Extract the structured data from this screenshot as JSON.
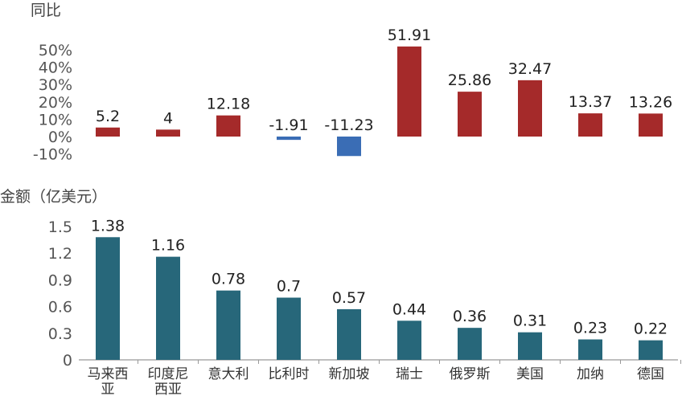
{
  "chart_data": [
    {
      "type": "bar",
      "ylabel": "同比",
      "ytick_labels": [
        "50%",
        "40%",
        "30%",
        "20%",
        "10%",
        "0%",
        "-10%"
      ],
      "ylim": [
        -10,
        50
      ],
      "values": [
        5.2,
        4,
        12.18,
        -1.91,
        -11.23,
        51.91,
        25.86,
        32.47,
        13.37,
        13.26
      ],
      "data_labels": [
        "5.2",
        "4",
        "12.18",
        "-1.91",
        "-11.23",
        "51.91",
        "25.86",
        "32.47",
        "13.37",
        "13.26"
      ],
      "colors": {
        "positive": "#A52A2A",
        "negative": "#3A6DB5"
      }
    },
    {
      "type": "bar",
      "ylabel": "金额（亿美元）",
      "ytick_labels": [
        "1.5",
        "1.2",
        "0.9",
        "0.6",
        "0.3",
        "0"
      ],
      "ylim": [
        0,
        1.5
      ],
      "categories": [
        [
          "马来西",
          "亚"
        ],
        [
          "印度尼",
          "西亚"
        ],
        [
          "意大利"
        ],
        [
          "比利时"
        ],
        [
          "新加坡"
        ],
        [
          "瑞士"
        ],
        [
          "俄罗斯"
        ],
        [
          "美国"
        ],
        [
          "加纳"
        ],
        [
          "德国"
        ]
      ],
      "values": [
        1.38,
        1.16,
        0.78,
        0.7,
        0.57,
        0.44,
        0.36,
        0.31,
        0.23,
        0.22
      ],
      "data_labels": [
        "1.38",
        "1.16",
        "0.78",
        "0.7",
        "0.57",
        "0.44",
        "0.36",
        "0.31",
        "0.23",
        "0.22"
      ],
      "colors": {
        "bar": "#27677A",
        "axis": "#999999"
      }
    }
  ]
}
